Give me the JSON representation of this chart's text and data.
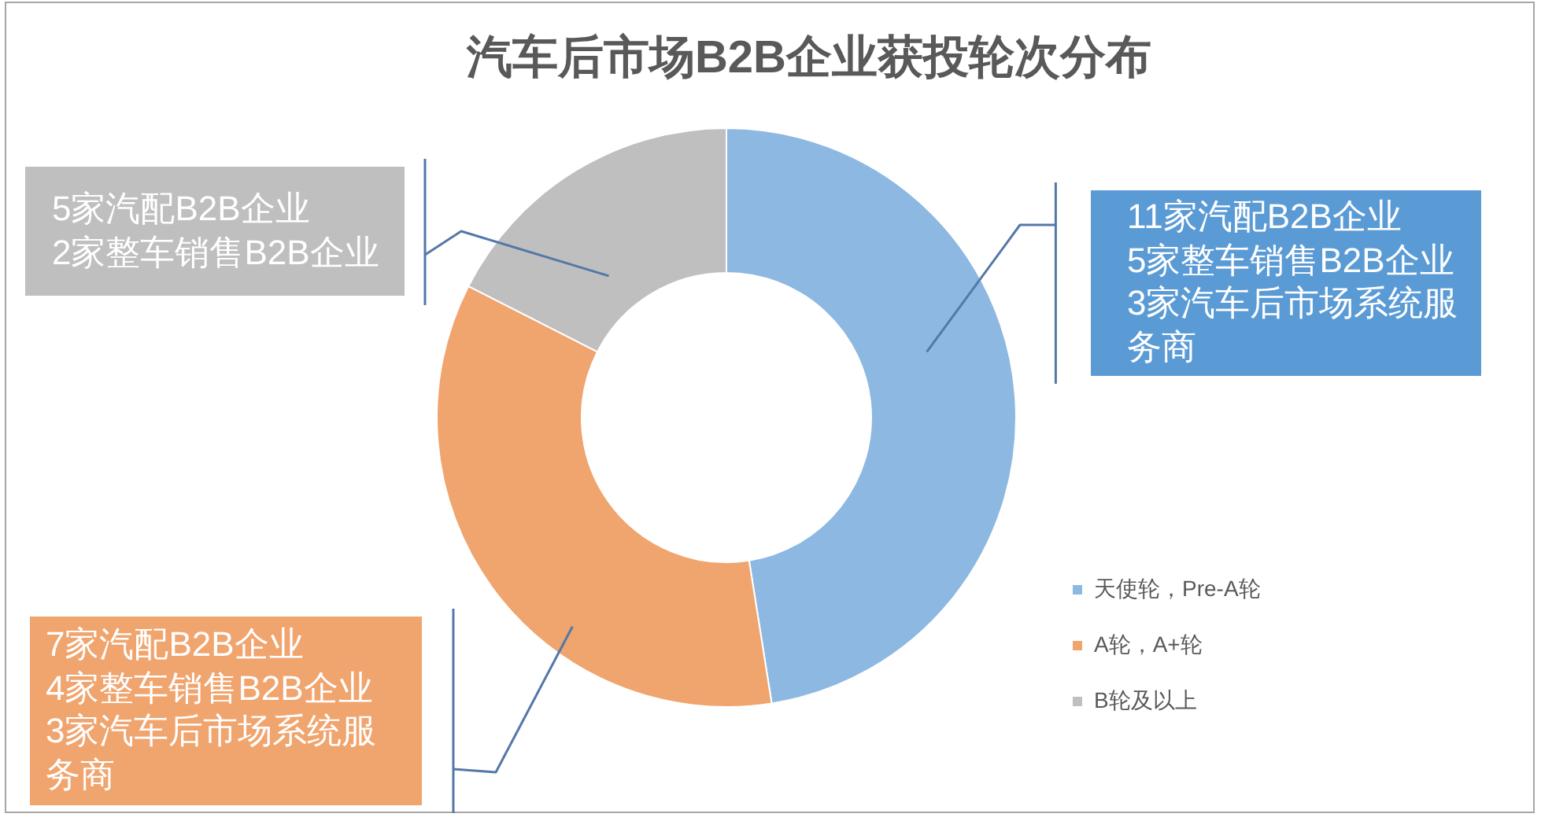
{
  "chart_data": {
    "type": "donut",
    "title": "汽车后市场B2B企业获投轮次分布",
    "categories": [
      "天使轮，Pre-A轮",
      "A轮，A+轮",
      "B轮及以上"
    ],
    "values": [
      47.5,
      35,
      17.5
    ],
    "colors": [
      "#8db8e2",
      "#f0a46e",
      "#bfbfbf"
    ],
    "legend": "bottom right",
    "annotations": [
      "11家汽配B2B企业\n5家整车销售B2B企业\n3家汽车后市场系统服务商",
      "7家汽配B2B企业\n4家整车销售B2B企业\n3家汽车后市场系统服务商",
      "5家汽配B2B企业\n2家整车销售B2B企业"
    ]
  }
}
